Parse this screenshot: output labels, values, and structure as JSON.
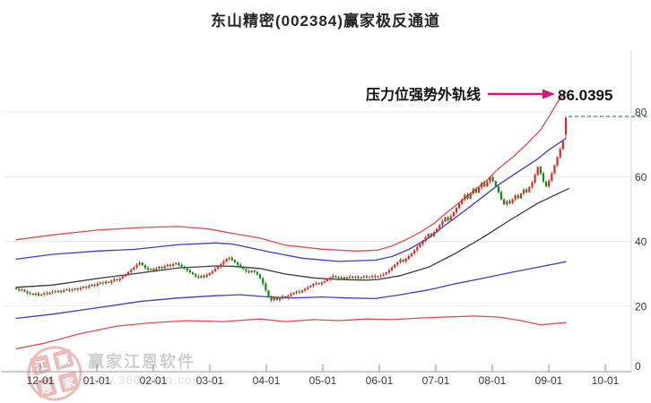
{
  "window": {
    "title": "东山精密(002384)赢家极反通道"
  },
  "annotation": {
    "label": "压力位强势外轨线",
    "value": "86.0395",
    "color": "#d6186e"
  },
  "watermark": {
    "brand": "赢家江恩软件",
    "url": "www.360gann.com",
    "seal_chars": [
      "江",
      "赢",
      "恩",
      "家"
    ]
  },
  "chart_data": {
    "type": "candlestick",
    "title": "东山精密(002384)赢家极反通道",
    "stock_name": "东山精密",
    "stock_code": "002384",
    "indicator_name": "赢家极反通道",
    "x_tick_labels": [
      "12-01",
      "01-01",
      "02-01",
      "03-01",
      "04-01",
      "05-01",
      "06-01",
      "07-01",
      "08-01",
      "09-01",
      "10-01"
    ],
    "y_tick_labels": [
      0,
      20,
      40,
      60,
      80
    ],
    "ylim": [
      0,
      88
    ],
    "grid": true,
    "resistance_annotation": {
      "label": "压力位强势外轨线",
      "value": 86.0395
    },
    "resistance_dash_level": 78.6,
    "closes": [
      25.3,
      24.9,
      25.1,
      24.5,
      24.1,
      23.8,
      23.5,
      23.9,
      23.3,
      23.6,
      24.0,
      23.7,
      24.2,
      24.5,
      24.3,
      24.7,
      24.4,
      24.9,
      25.2,
      24.8,
      25.0,
      25.4,
      25.1,
      25.6,
      26.0,
      25.7,
      26.2,
      26.6,
      26.3,
      26.9,
      27.3,
      27.0,
      27.5,
      27.2,
      27.8,
      28.3,
      28.0,
      28.6,
      29.2,
      29.8,
      30.5,
      31.2,
      32.0,
      32.8,
      33.4,
      32.6,
      31.8,
      31.2,
      31.5,
      31.0,
      31.6,
      32.1,
      31.7,
      32.3,
      32.8,
      32.4,
      32.9,
      33.3,
      32.7,
      32.2,
      31.6,
      31.0,
      30.4,
      29.8,
      29.2,
      28.8,
      29.4,
      29.0,
      29.6,
      30.2,
      30.8,
      31.5,
      32.2,
      33.0,
      33.8,
      34.6,
      34.9,
      34.2,
      33.5,
      32.8,
      32.1,
      31.4,
      30.8,
      30.4,
      30.9,
      30.5,
      29.8,
      28.6,
      26.9,
      24.8,
      22.9,
      21.8,
      22.6,
      21.9,
      22.4,
      23.0,
      22.5,
      23.2,
      23.7,
      24.1,
      24.5,
      24.2,
      24.8,
      25.3,
      25.8,
      26.3,
      26.8,
      27.1,
      26.8,
      27.3,
      27.7,
      28.2,
      28.8,
      29.3,
      28.9,
      28.5,
      28.9,
      28.4,
      28.8,
      29.1,
      28.7,
      29.0,
      28.6,
      28.9,
      29.2,
      28.8,
      29.0,
      29.3,
      28.9,
      29.2,
      29.5,
      29.8,
      30.4,
      31.1,
      31.9,
      32.8,
      33.5,
      34.3,
      33.8,
      34.6,
      35.4,
      36.3,
      37.2,
      38.2,
      39.1,
      40.1,
      41.2,
      42.3,
      41.6,
      42.8,
      43.9,
      45.0,
      46.2,
      47.4,
      46.5,
      47.8,
      49.0,
      50.3,
      51.6,
      53.0,
      54.4,
      53.2,
      54.8,
      56.2,
      55.1,
      56.6,
      58.0,
      57.0,
      58.5,
      59.8,
      58.6,
      57.0,
      55.2,
      53.0,
      51.5,
      52.4,
      51.8,
      53.0,
      54.2,
      53.4,
      54.8,
      56.0,
      55.2,
      56.8,
      58.2,
      60.5,
      63.0,
      61.0,
      58.5,
      57.0,
      58.8,
      61.0,
      63.5,
      66.0,
      68.5,
      71.0
    ],
    "last_candle": {
      "open": 73.0,
      "high": 78.6,
      "low": 71.8,
      "close": 78.2
    },
    "channel_lines": {
      "upper_outer_red": [
        [
          0,
          40.5
        ],
        [
          13,
          42.0
        ],
        [
          29,
          43.5
        ],
        [
          45,
          44.3
        ],
        [
          58,
          44.6
        ],
        [
          69,
          43.8
        ],
        [
          77,
          42.5
        ],
        [
          87,
          41.0
        ],
        [
          96,
          38.8
        ],
        [
          109,
          37.6
        ],
        [
          121,
          37.0
        ],
        [
          129,
          37.3
        ],
        [
          134,
          38.6
        ],
        [
          139,
          40.5
        ],
        [
          144,
          42.8
        ],
        [
          149,
          45.5
        ],
        [
          153,
          48.5
        ],
        [
          158,
          52.0
        ],
        [
          163,
          55.5
        ],
        [
          168,
          59.0
        ],
        [
          172,
          62.5
        ],
        [
          177,
          66.0
        ],
        [
          182,
          70.0
        ],
        [
          187,
          74.5
        ],
        [
          190,
          78.5
        ],
        [
          193,
          83.0
        ],
        [
          196,
          86.0
        ]
      ],
      "upper_inner_blue": [
        [
          0,
          34.5
        ],
        [
          13,
          36.0
        ],
        [
          29,
          37.0
        ],
        [
          42,
          37.5
        ],
        [
          58,
          39.0
        ],
        [
          71,
          39.5
        ],
        [
          77,
          39.2
        ],
        [
          90,
          36.8
        ],
        [
          102,
          34.8
        ],
        [
          115,
          33.8
        ],
        [
          128,
          34.2
        ],
        [
          134,
          35.3
        ],
        [
          140,
          37.5
        ],
        [
          147,
          41.0
        ],
        [
          153,
          45.0
        ],
        [
          160,
          49.5
        ],
        [
          166,
          53.5
        ],
        [
          172,
          57.5
        ],
        [
          179,
          61.5
        ],
        [
          186,
          65.5
        ],
        [
          190,
          68.3
        ],
        [
          196,
          71.8
        ]
      ],
      "middle_black": [
        [
          0,
          25.8
        ],
        [
          13,
          26.5
        ],
        [
          29,
          28.5
        ],
        [
          45,
          30.3
        ],
        [
          58,
          31.8
        ],
        [
          71,
          32.4
        ],
        [
          77,
          32.3
        ],
        [
          87,
          31.6
        ],
        [
          96,
          29.9
        ],
        [
          106,
          28.7
        ],
        [
          115,
          28.2
        ],
        [
          125,
          28.0
        ],
        [
          129,
          28.2
        ],
        [
          137,
          29.4
        ],
        [
          147,
          32.0
        ],
        [
          156,
          36.0
        ],
        [
          166,
          41.0
        ],
        [
          176,
          46.5
        ],
        [
          186,
          51.8
        ],
        [
          197,
          56.3
        ]
      ],
      "lower_inner_blue": [
        [
          0,
          16.2
        ],
        [
          13,
          17.5
        ],
        [
          29,
          19.5
        ],
        [
          45,
          21.5
        ],
        [
          58,
          22.5
        ],
        [
          71,
          23.2
        ],
        [
          80,
          23.5
        ],
        [
          90,
          22.8
        ],
        [
          99,
          22.5
        ],
        [
          109,
          22.8
        ],
        [
          118,
          22.5
        ],
        [
          128,
          22.3
        ],
        [
          137,
          23.5
        ],
        [
          147,
          25.0
        ],
        [
          156,
          26.8
        ],
        [
          166,
          28.5
        ],
        [
          176,
          30.3
        ],
        [
          186,
          32.0
        ],
        [
          196,
          33.7
        ]
      ],
      "lower_outer_red": [
        [
          0,
          6.8
        ],
        [
          10,
          8.5
        ],
        [
          23,
          11.5
        ],
        [
          36,
          13.8
        ],
        [
          48,
          14.8
        ],
        [
          61,
          15.5
        ],
        [
          74,
          15.2
        ],
        [
          87,
          16.0
        ],
        [
          96,
          15.2
        ],
        [
          106,
          15.8
        ],
        [
          115,
          15.5
        ],
        [
          125,
          16.0
        ],
        [
          134,
          15.8
        ],
        [
          144,
          16.3
        ],
        [
          153,
          16.6
        ],
        [
          163,
          16.9
        ],
        [
          172,
          16.6
        ],
        [
          180,
          15.5
        ],
        [
          187,
          14.2
        ],
        [
          196,
          14.9
        ]
      ]
    },
    "colors": {
      "up": "#db2a1f",
      "down": "#0e8a17",
      "channel_red": "#e14b4b",
      "channel_blue": "#3d3dd2",
      "channel_mid": "#3a3a3a",
      "dash_green": "#2a8a2a",
      "grid": "#ebebeb",
      "axis": "#9a9a9a",
      "tick_text": "#3a3a3a",
      "arrow": "#d6186e",
      "watermark_brand": "#b0b0b0",
      "watermark_url": "#cccccc",
      "seal": "#dd9191"
    }
  }
}
